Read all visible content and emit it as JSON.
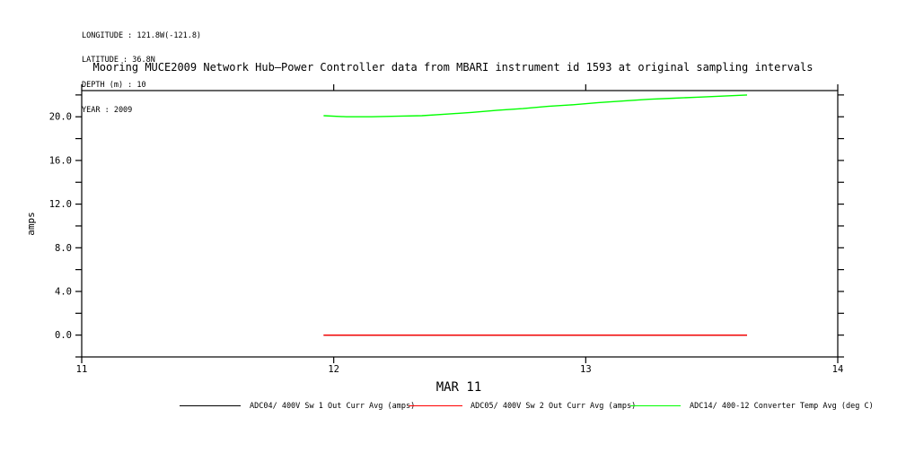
{
  "meta_block": {
    "lines": [
      "LONGITUDE : 121.8W(-121.8)",
      "LATITUDE : 36.8N",
      "DEPTH (m) : 10",
      "YEAR : 2009"
    ]
  },
  "chart_data": {
    "type": "line",
    "title": "Mooring MUCE2009 Network Hub–Power Controller data from MBARI instrument id 1593 at original sampling intervals",
    "xlabel": "MAR 11",
    "ylabel": "amps",
    "xlim": [
      11,
      14
    ],
    "ylim": [
      -2.0,
      22.4
    ],
    "x_ticks": [
      11,
      12,
      13,
      14
    ],
    "x_tick_labels": [
      "11",
      "12",
      "13",
      "14"
    ],
    "y_ticks": [
      -2,
      0,
      2,
      4,
      6,
      8,
      10,
      12,
      14,
      16,
      18,
      20,
      22
    ],
    "y_labeled_ticks": [
      0,
      4,
      8,
      12,
      16,
      20
    ],
    "y_tick_label_format": [
      "0.0",
      "4.0",
      "8.0",
      "12.0",
      "16.0",
      "20.0"
    ],
    "grid": "off",
    "legend_position": "bottom",
    "frame_color": "#000000",
    "series": [
      {
        "name": "ADC04/ 400V Sw 1 Out Curr Avg (amps)",
        "color": "#000000",
        "x": [
          11.96,
          13.64
        ],
        "y": [
          0.0,
          0.0
        ]
      },
      {
        "name": "ADC05/ 400V Sw 2 Out Curr Avg (amps)",
        "color": "#ff0000",
        "x": [
          11.96,
          13.64
        ],
        "y": [
          0.0,
          0.0
        ]
      },
      {
        "name": "ADC14/ 400-12 Converter Temp Avg (deg C)",
        "color": "#00ff00",
        "x": [
          11.96,
          12.05,
          12.15,
          12.25,
          12.35,
          12.45,
          12.55,
          12.65,
          12.75,
          12.85,
          12.95,
          13.05,
          13.15,
          13.25,
          13.35,
          13.45,
          13.55,
          13.64
        ],
        "y": [
          20.1,
          20.0,
          20.0,
          20.05,
          20.1,
          20.25,
          20.4,
          20.6,
          20.75,
          20.95,
          21.1,
          21.3,
          21.45,
          21.6,
          21.7,
          21.8,
          21.9,
          22.0
        ]
      }
    ]
  }
}
